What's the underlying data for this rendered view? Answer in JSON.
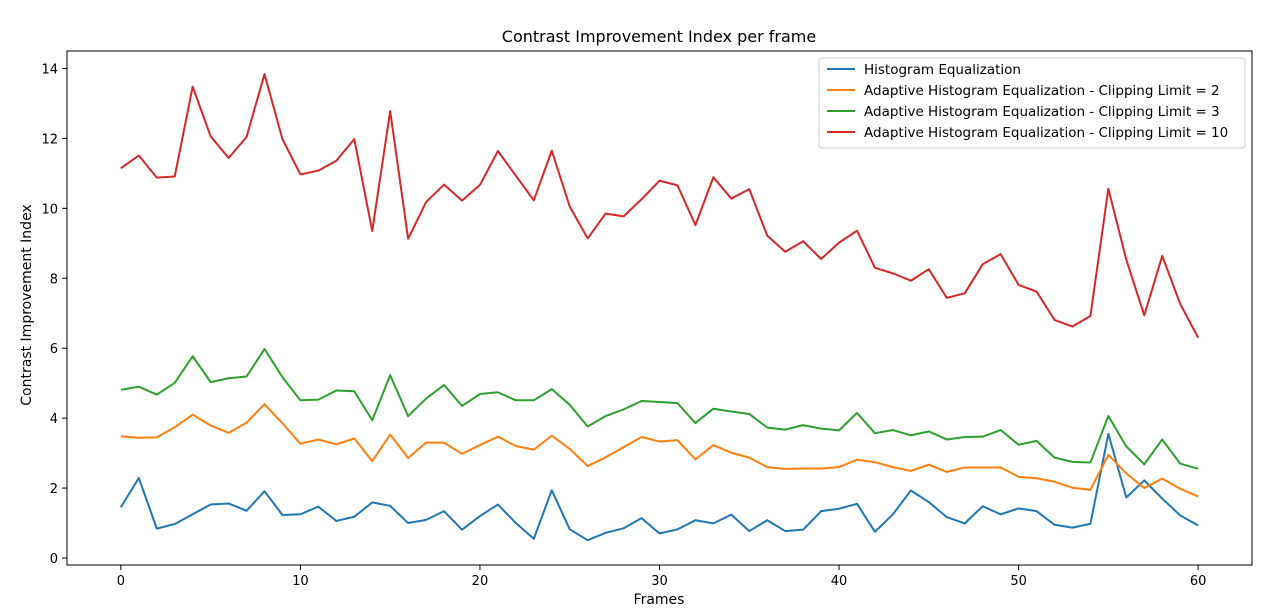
{
  "chart_data": {
    "type": "line",
    "title": "Contrast Improvement Index per frame",
    "xlabel": "Frames",
    "ylabel": "Contrast Improvement Index",
    "xlim": [
      -3,
      63
    ],
    "ylim": [
      -0.2,
      14.5
    ],
    "xticks": [
      0,
      10,
      20,
      30,
      40,
      50,
      60
    ],
    "yticks": [
      0,
      2,
      4,
      6,
      8,
      10,
      12,
      14
    ],
    "grid": false,
    "legend_position": "top-right",
    "x": [
      0,
      1,
      2,
      3,
      4,
      5,
      6,
      7,
      8,
      9,
      10,
      11,
      12,
      13,
      14,
      15,
      16,
      17,
      18,
      19,
      20,
      21,
      22,
      23,
      24,
      25,
      26,
      27,
      28,
      29,
      30,
      31,
      32,
      33,
      34,
      35,
      36,
      37,
      38,
      39,
      40,
      41,
      42,
      43,
      44,
      45,
      46,
      47,
      48,
      49,
      50,
      51,
      52,
      53,
      54,
      55,
      56,
      57,
      58,
      59,
      60
    ],
    "series": [
      {
        "name": "Histogram Equalization",
        "color": "#1f77b4",
        "values": [
          1.45,
          2.29,
          0.84,
          0.97,
          1.25,
          1.53,
          1.56,
          1.35,
          1.91,
          1.23,
          1.25,
          1.47,
          1.06,
          1.18,
          1.59,
          1.49,
          1.0,
          1.09,
          1.34,
          0.81,
          1.2,
          1.53,
          1.0,
          0.55,
          1.94,
          0.82,
          0.51,
          0.72,
          0.85,
          1.14,
          0.7,
          0.82,
          1.08,
          0.99,
          1.24,
          0.77,
          1.08,
          0.77,
          0.81,
          1.34,
          1.41,
          1.55,
          0.75,
          1.25,
          1.93,
          1.6,
          1.17,
          0.99,
          1.48,
          1.25,
          1.42,
          1.34,
          0.95,
          0.87,
          0.98,
          3.55,
          1.73,
          2.22,
          1.7,
          1.22,
          0.93
        ]
      },
      {
        "name": "Adaptive Histogram Equalization - Clipping Limit = 2",
        "color": "#ff7f0e",
        "values": [
          3.48,
          3.44,
          3.45,
          3.74,
          4.1,
          3.79,
          3.58,
          3.87,
          4.4,
          3.85,
          3.27,
          3.39,
          3.25,
          3.42,
          2.77,
          3.53,
          2.86,
          3.3,
          3.3,
          2.98,
          3.23,
          3.47,
          3.2,
          3.1,
          3.5,
          3.12,
          2.63,
          2.88,
          3.17,
          3.46,
          3.33,
          3.37,
          2.82,
          3.23,
          3.01,
          2.87,
          2.6,
          2.55,
          2.56,
          2.56,
          2.6,
          2.81,
          2.74,
          2.6,
          2.49,
          2.67,
          2.46,
          2.59,
          2.59,
          2.59,
          2.32,
          2.28,
          2.18,
          2.01,
          1.95,
          2.95,
          2.42,
          2.0,
          2.27,
          1.98,
          1.76
        ]
      },
      {
        "name": "Adaptive Histogram Equalization - Clipping Limit = 3",
        "color": "#2ca02c",
        "values": [
          4.81,
          4.9,
          4.67,
          5.01,
          5.77,
          5.03,
          5.14,
          5.19,
          5.98,
          5.17,
          4.51,
          4.53,
          4.79,
          4.77,
          3.94,
          5.23,
          4.06,
          4.56,
          4.95,
          4.35,
          4.69,
          4.74,
          4.51,
          4.51,
          4.83,
          4.38,
          3.76,
          4.06,
          4.25,
          4.49,
          4.46,
          4.43,
          3.86,
          4.27,
          4.19,
          4.12,
          3.73,
          3.67,
          3.8,
          3.7,
          3.65,
          4.15,
          3.57,
          3.66,
          3.51,
          3.62,
          3.39,
          3.46,
          3.47,
          3.66,
          3.24,
          3.35,
          2.87,
          2.75,
          2.73,
          4.06,
          3.19,
          2.68,
          3.39,
          2.7,
          2.55
        ]
      },
      {
        "name": "Adaptive Histogram Equalization - Clipping Limit = 10",
        "color": "#d62728",
        "values": [
          11.15,
          11.51,
          10.88,
          10.91,
          13.48,
          12.06,
          11.44,
          12.04,
          13.84,
          11.98,
          10.97,
          11.08,
          11.36,
          11.98,
          9.35,
          12.78,
          9.13,
          10.18,
          10.68,
          10.22,
          10.67,
          11.64,
          10.93,
          10.23,
          11.65,
          10.05,
          9.14,
          9.85,
          9.77,
          10.26,
          10.79,
          10.66,
          9.52,
          10.89,
          10.28,
          10.55,
          9.22,
          8.76,
          9.06,
          8.55,
          9.02,
          9.36,
          8.3,
          8.14,
          7.93,
          8.26,
          7.44,
          7.57,
          8.4,
          8.69,
          7.81,
          7.62,
          6.81,
          6.62,
          6.92,
          10.56,
          8.53,
          6.94,
          8.64,
          7.27,
          6.3
        ]
      }
    ]
  }
}
